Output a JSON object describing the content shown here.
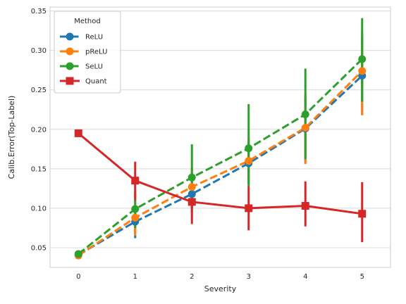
{
  "chart_data": {
    "type": "line",
    "title": "",
    "xlabel": "Severity",
    "ylabel": "Calib.Error(Top-Label)",
    "categories": [
      "0",
      "1",
      "2",
      "3",
      "4",
      "5"
    ],
    "ylim": [
      0.025,
      0.355
    ],
    "yticks": [
      0.05,
      0.1,
      0.15,
      0.2,
      0.25,
      0.3,
      0.35
    ],
    "ytick_labels": [
      "0.05",
      "0.10",
      "0.15",
      "0.20",
      "0.25",
      "0.30",
      "0.35"
    ],
    "grid": true,
    "legend": {
      "title": "Method",
      "placement": "top-left"
    },
    "series": [
      {
        "name": "ReLU",
        "color": "#1f77b4",
        "dash": true,
        "marker": "circle",
        "values": [
          0.041,
          0.083,
          0.118,
          0.157,
          0.201,
          0.268
        ],
        "err_low": [
          0.041,
          0.062,
          0.095,
          0.13,
          0.158,
          0.218
        ],
        "err_high": [
          0.041,
          0.104,
          0.145,
          0.185,
          0.24,
          0.318
        ]
      },
      {
        "name": "pReLU",
        "color": "#ff7f0e",
        "dash": true,
        "marker": "circle",
        "values": [
          0.04,
          0.088,
          0.127,
          0.16,
          0.202,
          0.274
        ],
        "err_low": [
          0.04,
          0.065,
          0.1,
          0.132,
          0.156,
          0.218
        ],
        "err_high": [
          0.04,
          0.11,
          0.152,
          0.19,
          0.245,
          0.325
        ]
      },
      {
        "name": "SeLU",
        "color": "#2ca02c",
        "dash": true,
        "marker": "circle",
        "values": [
          0.042,
          0.099,
          0.139,
          0.176,
          0.219,
          0.289
        ],
        "err_low": [
          0.042,
          0.075,
          0.1,
          0.128,
          0.162,
          0.235
        ],
        "err_high": [
          0.042,
          0.122,
          0.181,
          0.232,
          0.277,
          0.341
        ]
      },
      {
        "name": "Quant",
        "color": "#d62728",
        "dash": false,
        "marker": "square",
        "values": [
          0.195,
          0.135,
          0.108,
          0.1,
          0.103,
          0.093
        ],
        "err_low": [
          0.195,
          0.11,
          0.08,
          0.072,
          0.077,
          0.057
        ],
        "err_high": [
          0.195,
          0.159,
          0.132,
          0.128,
          0.134,
          0.133
        ]
      }
    ]
  }
}
